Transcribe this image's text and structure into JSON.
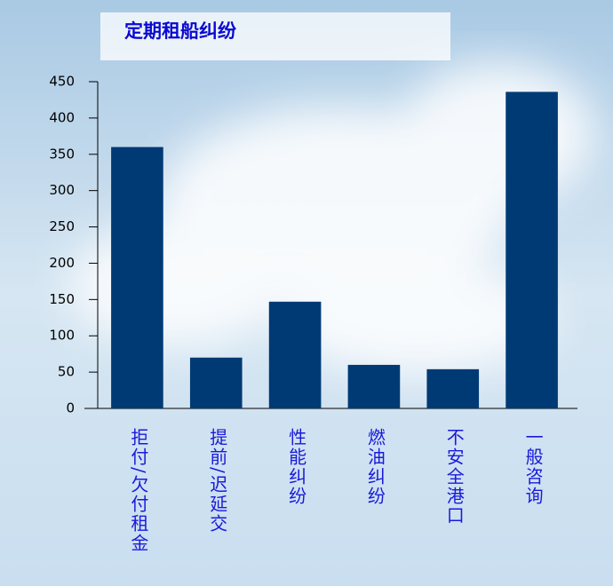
{
  "chart_data": {
    "type": "bar",
    "title": "定期租船纠纷",
    "categories": [
      "拒付/欠付租金",
      "提前/迟延交",
      "性能纠纷",
      "燃油纠纷",
      "不安全港口",
      "一般咨询"
    ],
    "values": [
      360,
      70,
      147,
      60,
      54,
      436
    ],
    "color": "#003a75",
    "ylim": [
      0,
      450
    ],
    "yticks": [
      0,
      50,
      100,
      150,
      200,
      250,
      300,
      350,
      400,
      450
    ]
  }
}
